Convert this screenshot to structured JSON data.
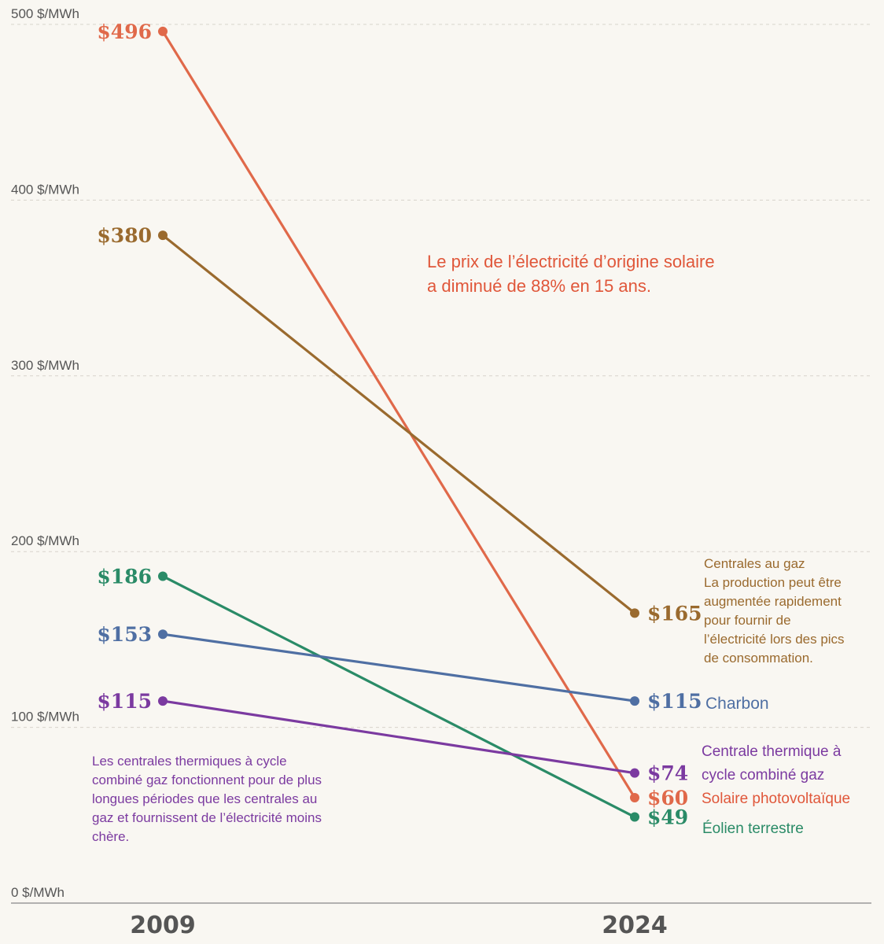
{
  "chart_data": {
    "type": "line",
    "x": [
      "2009",
      "2024"
    ],
    "ylim": [
      0,
      500
    ],
    "yticks": [
      {
        "value": 0,
        "label": "0 $/MWh"
      },
      {
        "value": 100,
        "label": "100 $/MWh"
      },
      {
        "value": 200,
        "label": "200 $/MWh"
      },
      {
        "value": 300,
        "label": "300 $/MWh"
      },
      {
        "value": 400,
        "label": "400 $/MWh"
      },
      {
        "value": 500,
        "label": "500 $/MWh"
      }
    ],
    "grid": true,
    "series": [
      {
        "name": "Solaire photovoltaïque",
        "color": "#e0694a",
        "values": [
          496,
          60
        ],
        "labels": [
          "$496",
          "$60"
        ]
      },
      {
        "name": "Centrales au gaz",
        "color": "#9a6a2e",
        "values": [
          380,
          165
        ],
        "labels": [
          "$380",
          "$165"
        ]
      },
      {
        "name": "Éolien terrestre",
        "color": "#2a8b67",
        "values": [
          186,
          49
        ],
        "labels": [
          "$186",
          "$49"
        ]
      },
      {
        "name": "Charbon",
        "color": "#4f6fa3",
        "values": [
          153,
          115
        ],
        "labels": [
          "$153",
          "$115"
        ]
      },
      {
        "name": "Centrale thermique à cycle combiné gaz",
        "color": "#7b3aa0",
        "values": [
          115,
          74
        ],
        "labels": [
          "$115",
          "$74"
        ]
      }
    ],
    "annotations": {
      "solar_note": [
        "Le prix de l’électricité d’origine solaire",
        "a diminué de 88% en 15 ans."
      ],
      "gas_note": [
        "Centrales au gaz",
        "La production peut être",
        "augmentée rapidement",
        "pour fournir de",
        "l’électricité lors des pics",
        "de consommation."
      ],
      "coal_name": [
        "Charbon"
      ],
      "ccgt_name": [
        "Centrale thermique à",
        "cycle combiné gaz"
      ],
      "solar_name": [
        "Solaire photovoltaïque"
      ],
      "wind_name": [
        "Éolien terrestre"
      ],
      "ccgt_note": [
        "Les centrales thermiques à cycle",
        "combiné gaz fonctionnent pour de plus",
        "longues périodes que les centrales au",
        "gaz et fournissent de l’électricité moins",
        "chère."
      ]
    }
  }
}
